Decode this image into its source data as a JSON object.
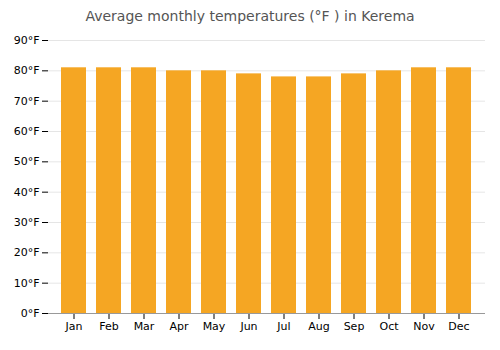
{
  "chart_data": {
    "type": "bar",
    "title": "Average monthly temperatures (°F ) in Kerema",
    "categories": [
      "Jan",
      "Feb",
      "Mar",
      "Apr",
      "May",
      "Jun",
      "Jul",
      "Aug",
      "Sep",
      "Oct",
      "Nov",
      "Dec"
    ],
    "values": [
      81,
      81,
      81,
      80,
      80,
      79,
      78,
      78,
      79,
      80,
      81,
      81
    ],
    "color": "#F5A623",
    "ylim": [
      0,
      90
    ],
    "yticks": [
      {
        "value": 0,
        "label": "0°F"
      },
      {
        "value": 10,
        "label": "10°F"
      },
      {
        "value": 20,
        "label": "20°F"
      },
      {
        "value": 30,
        "label": "30°F"
      },
      {
        "value": 40,
        "label": "40°F"
      },
      {
        "value": 50,
        "label": "50°F"
      },
      {
        "value": 60,
        "label": "60°F"
      },
      {
        "value": 70,
        "label": "70°F"
      },
      {
        "value": 80,
        "label": "80°F"
      },
      {
        "value": 90,
        "label": "90°F"
      }
    ],
    "grid": true
  }
}
